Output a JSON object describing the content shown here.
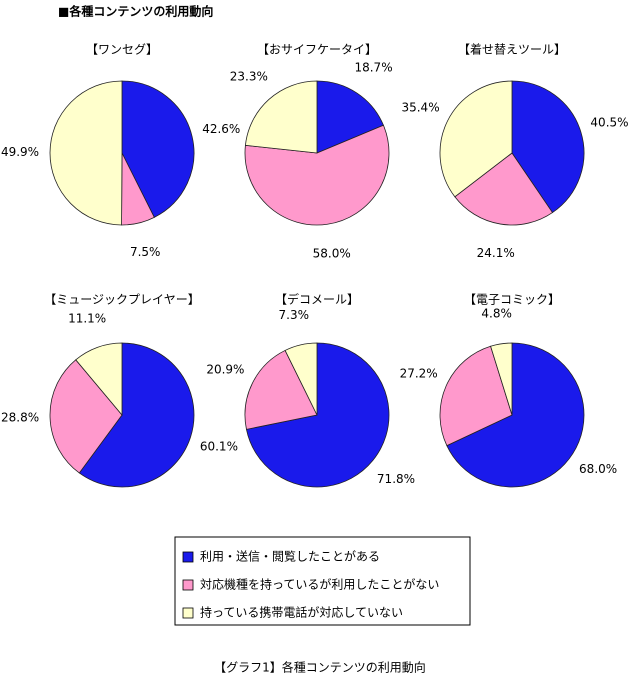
{
  "title": "■各種コンテンツの利用動向",
  "caption": "【グラフ1】各種コンテンツの利用動向",
  "legend": {
    "categories": [
      "利用・送信・閲覧したことがある",
      "対応機種を持っているが利用したことがない",
      "持っている携帯電話が対応していない"
    ],
    "colors": [
      "#1a1aeb",
      "#ff99cc",
      "#ffffcc"
    ]
  },
  "chart_data": [
    {
      "type": "pie",
      "title": "【ワンセグ】",
      "values": [
        42.6,
        7.5,
        49.9
      ],
      "value_labels": [
        "42.6%",
        "7.5%",
        "49.9%"
      ]
    },
    {
      "type": "pie",
      "title": "【おサイフケータイ】",
      "values": [
        18.7,
        58.0,
        23.3
      ],
      "value_labels": [
        "18.7%",
        "58.0%",
        "23.3%"
      ]
    },
    {
      "type": "pie",
      "title": "【着せ替えツール】",
      "values": [
        40.5,
        24.1,
        35.4
      ],
      "value_labels": [
        "40.5%",
        "24.1%",
        "35.4%"
      ]
    },
    {
      "type": "pie",
      "title": "【ミュージックプレイヤー】",
      "values": [
        60.1,
        28.8,
        11.1
      ],
      "value_labels": [
        "60.1%",
        "28.8%",
        "11.1%"
      ]
    },
    {
      "type": "pie",
      "title": "【デコメール】",
      "values": [
        71.8,
        20.9,
        7.3
      ],
      "value_labels": [
        "71.8%",
        "20.9%",
        "7.3%"
      ]
    },
    {
      "type": "pie",
      "title": "【電子コミック】",
      "values": [
        68.0,
        27.2,
        4.8
      ],
      "value_labels": [
        "68.0%",
        "27.2%",
        "4.8%"
      ]
    }
  ]
}
